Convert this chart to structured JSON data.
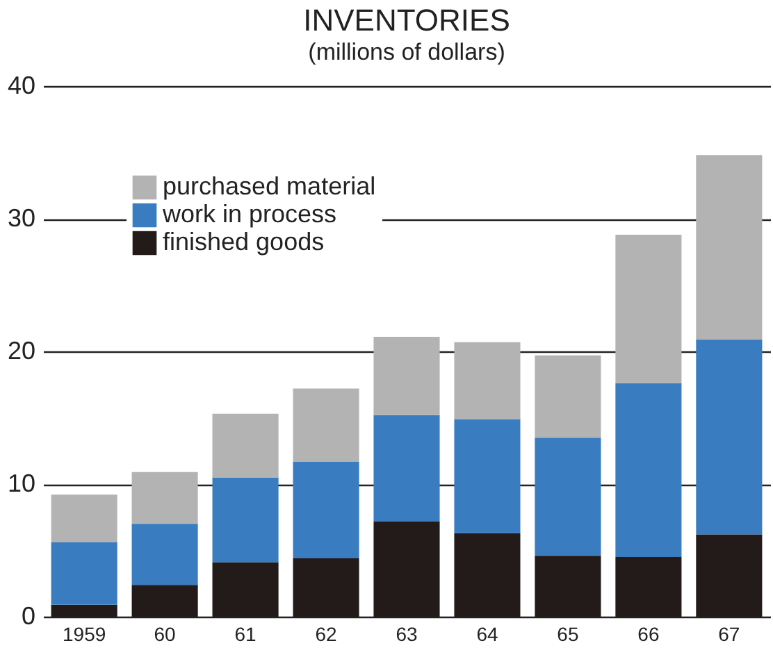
{
  "chart_data": {
    "type": "bar",
    "title": "INVENTORIES",
    "subtitle": "(millions of dollars)",
    "categories": [
      "1959",
      "60",
      "61",
      "62",
      "63",
      "64",
      "65",
      "66",
      "67"
    ],
    "stacked": true,
    "series": [
      {
        "name": "finished goods",
        "color": "#231a1a",
        "values": [
          0.9,
          2.4,
          4.1,
          4.4,
          7.2,
          6.3,
          4.6,
          4.5,
          6.2
        ]
      },
      {
        "name": "work in process",
        "color": "#3a7cc0",
        "values": [
          4.7,
          4.6,
          6.4,
          7.3,
          8.0,
          8.6,
          8.9,
          13.1,
          14.7
        ]
      },
      {
        "name": "purchased material",
        "color": "#b3b3b3",
        "values": [
          3.6,
          3.9,
          4.8,
          5.5,
          5.9,
          5.8,
          6.2,
          11.2,
          13.9
        ]
      }
    ],
    "ylim": [
      0,
      40
    ],
    "yticks": [
      0,
      10,
      20,
      30,
      40
    ],
    "grid": "y",
    "legend": "top left"
  }
}
